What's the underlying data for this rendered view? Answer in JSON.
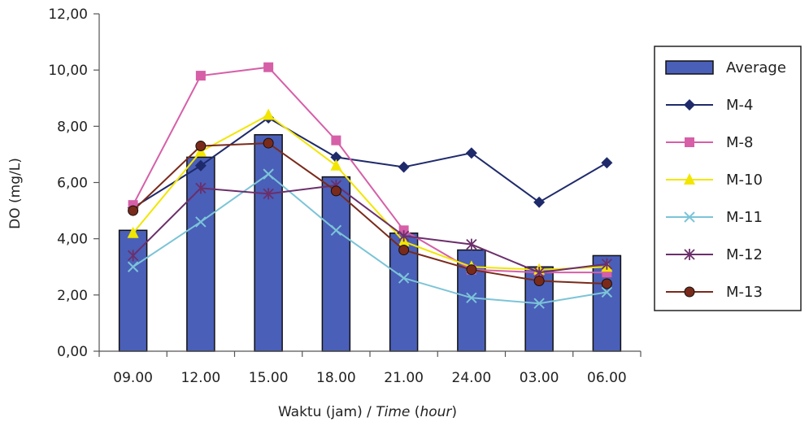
{
  "chart_data": {
    "type": "bar",
    "categories": [
      "09.00",
      "12.00",
      "15.00",
      "18.00",
      "21.00",
      "24.00",
      "03.00",
      "06.00"
    ],
    "ylabel": "DO (mg/L)",
    "xlabel_plain": "Waktu (jam) / ",
    "xlabel_italic_1": "Time",
    "xlabel_italic_2": "hour",
    "ylim": [
      0,
      12
    ],
    "yticks": [
      "0,00",
      "2,00",
      "4,00",
      "6,00",
      "8,00",
      "10,00",
      "12,00"
    ],
    "grid": false,
    "legend_position": "right",
    "bars": {
      "name": "Average",
      "color": "#4a5fb8",
      "values": [
        4.3,
        6.9,
        7.7,
        6.2,
        4.2,
        3.6,
        3.0,
        3.4
      ]
    },
    "series": [
      {
        "name": "M-4",
        "color": "#1f2a6b",
        "marker": "diamond",
        "values": [
          5.1,
          6.6,
          8.3,
          6.9,
          6.55,
          7.05,
          5.3,
          6.7
        ]
      },
      {
        "name": "M-8",
        "color": "#d65fa8",
        "marker": "square",
        "values": [
          5.2,
          9.8,
          10.1,
          7.5,
          4.3,
          2.9,
          2.8,
          2.8
        ]
      },
      {
        "name": "M-10",
        "color": "#f2e600",
        "marker": "triangle",
        "values": [
          4.2,
          7.1,
          8.4,
          6.6,
          3.9,
          3.0,
          2.9,
          3.0
        ]
      },
      {
        "name": "M-11",
        "color": "#7cc4d8",
        "marker": "x",
        "values": [
          3.0,
          4.6,
          6.3,
          4.3,
          2.6,
          1.9,
          1.7,
          2.1
        ]
      },
      {
        "name": "M-12",
        "color": "#6b2f6b",
        "marker": "star",
        "values": [
          3.4,
          5.8,
          5.6,
          5.9,
          4.1,
          3.8,
          2.8,
          3.1
        ]
      },
      {
        "name": "M-13",
        "color": "#7a2a1a",
        "marker": "circle",
        "values": [
          5.0,
          7.3,
          7.4,
          5.7,
          3.6,
          2.9,
          2.5,
          2.4
        ]
      }
    ]
  }
}
